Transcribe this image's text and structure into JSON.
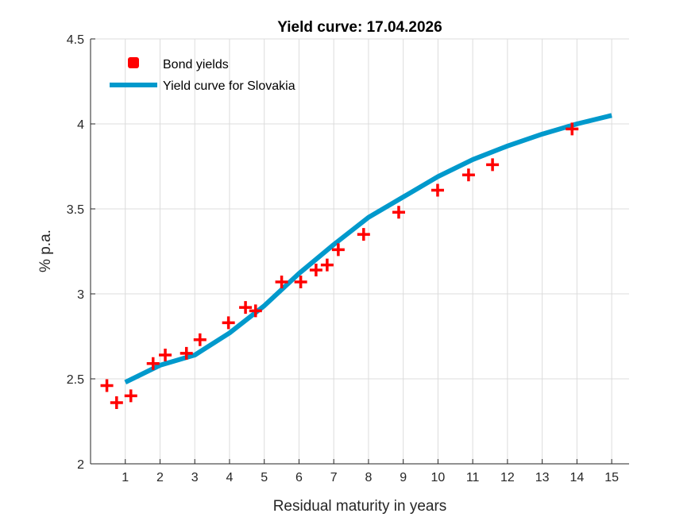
{
  "chart_data": {
    "type": "scatter+line",
    "title": "Yield curve: 17.04.2026",
    "xlabel": "Residual maturity in years",
    "ylabel": "% p.a.",
    "xlim": [
      0,
      15.5
    ],
    "ylim": [
      2,
      4.5
    ],
    "xticks": [
      1,
      2,
      3,
      4,
      5,
      6,
      7,
      8,
      9,
      10,
      11,
      12,
      13,
      14,
      15
    ],
    "yticks": [
      2,
      2.5,
      3,
      3.5,
      4,
      4.5
    ],
    "ytick_labels": [
      "2",
      "2.5",
      "3",
      "3.5",
      "4",
      "4.5"
    ],
    "grid": true,
    "legend_position": "top-left",
    "series": [
      {
        "name": "Bond yields",
        "kind": "scatter",
        "marker": "plus",
        "color": "#ff0000",
        "x": [
          0.47,
          0.75,
          1.16,
          1.8,
          2.15,
          2.76,
          3.15,
          3.97,
          4.46,
          4.75,
          5.5,
          6.05,
          6.49,
          6.81,
          7.13,
          7.86,
          8.87,
          9.99,
          10.88,
          11.57,
          13.86
        ],
        "y": [
          2.46,
          2.36,
          2.4,
          2.59,
          2.64,
          2.65,
          2.73,
          2.83,
          2.92,
          2.9,
          3.07,
          3.07,
          3.14,
          3.17,
          3.26,
          3.35,
          3.48,
          3.61,
          3.7,
          3.76,
          3.97
        ]
      },
      {
        "name": "Yield curve for Slovakia",
        "kind": "line",
        "color": "#0099cc",
        "x": [
          1,
          2,
          3,
          4,
          5,
          6,
          7,
          8,
          9,
          10,
          11,
          12,
          13,
          14,
          15
        ],
        "y": [
          2.48,
          2.58,
          2.64,
          2.77,
          2.93,
          3.12,
          3.29,
          3.45,
          3.57,
          3.69,
          3.79,
          3.87,
          3.94,
          4.0,
          4.05
        ]
      }
    ]
  }
}
